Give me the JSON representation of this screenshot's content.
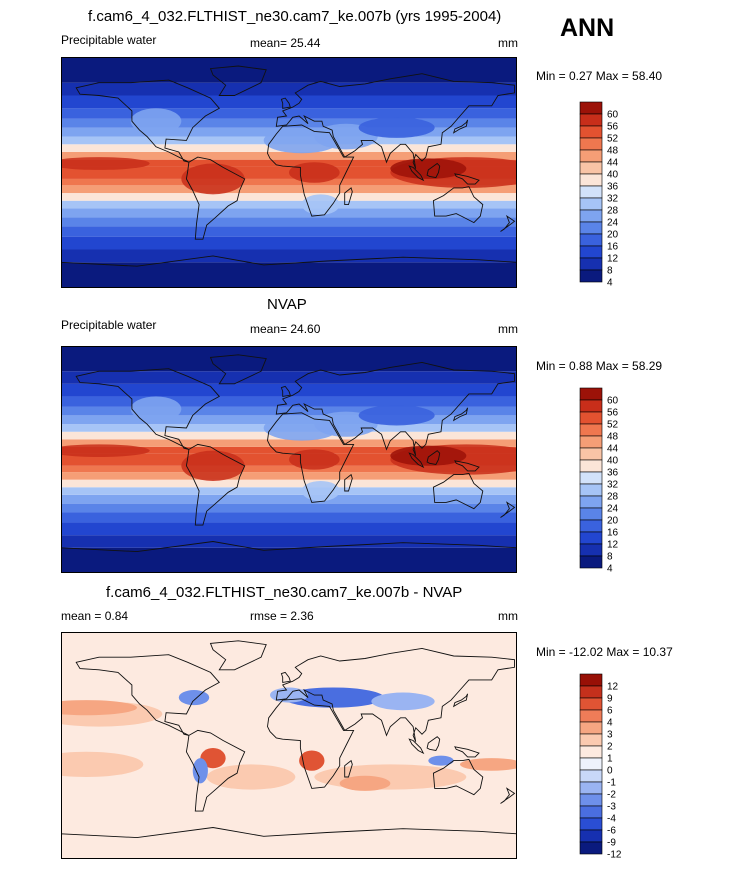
{
  "season": "ANN",
  "colors": {
    "full": [
      "#0a1a7e",
      "#1630b0",
      "#2246d0",
      "#3a62de",
      "#5a84e8",
      "#7ea4f0",
      "#a6c4f6",
      "#d2e2fa",
      "#fbe5d8",
      "#f9c4a6",
      "#f59e76",
      "#ef774f",
      "#e35230",
      "#c82e1a",
      "#9c1208"
    ],
    "diff": [
      "#0a1a7e",
      "#1630b0",
      "#2a4ed4",
      "#4a6ee0",
      "#6e90ea",
      "#9ab4f2",
      "#c8d8f8",
      "#eef2fc",
      "#fdeae0",
      "#fbcab0",
      "#f6a682",
      "#ef7c58",
      "#e05434",
      "#c4301c",
      "#981006"
    ]
  },
  "panels": [
    {
      "title": "f.cam6_4_032.FLTHIST_ne30.cam7_ke.007b (yrs 1995-2004)",
      "variable": "Precipitable water",
      "mean_label": "mean=",
      "mean": "25.44",
      "units": "mm",
      "minmax": "Min =   0.27 Max =  58.40",
      "colorbar_labels": [
        "4",
        "8",
        "12",
        "16",
        "20",
        "24",
        "28",
        "32",
        "36",
        "40",
        "44",
        "48",
        "52",
        "56",
        "60"
      ]
    },
    {
      "title": "NVAP",
      "variable": "Precipitable water",
      "mean_label": "mean=",
      "mean": "24.60",
      "units": "mm",
      "minmax": "Min =   0.88 Max =  58.29",
      "colorbar_labels": [
        "4",
        "8",
        "12",
        "16",
        "20",
        "24",
        "28",
        "32",
        "36",
        "40",
        "44",
        "48",
        "52",
        "56",
        "60"
      ]
    },
    {
      "title": "f.cam6_4_032.FLTHIST_ne30.cam7_ke.007b - NVAP",
      "mean_label": "mean =",
      "mean": "0.84",
      "rmse_label": "rmse =",
      "rmse": "2.36",
      "units": "mm",
      "minmax": "Min = -12.02 Max =  10.37",
      "colorbar_labels": [
        "-12",
        "-9",
        "-6",
        "-4",
        "-3",
        "-2",
        "-1",
        "0",
        "1",
        "2",
        "3",
        "4",
        "6",
        "9",
        "12"
      ]
    }
  ],
  "chart_data": [
    {
      "type": "heatmap",
      "title": "f.cam6_4_032.FLTHIST_ne30.cam7_ke.007b (yrs 1995-2004)",
      "field": "Precipitable water",
      "units": "mm",
      "mean": 25.44,
      "min": 0.27,
      "max": 58.4,
      "levels": [
        4,
        8,
        12,
        16,
        20,
        24,
        28,
        32,
        36,
        40,
        44,
        48,
        52,
        56,
        60
      ]
    },
    {
      "type": "heatmap",
      "title": "NVAP",
      "field": "Precipitable water",
      "units": "mm",
      "mean": 24.6,
      "min": 0.88,
      "max": 58.29,
      "levels": [
        4,
        8,
        12,
        16,
        20,
        24,
        28,
        32,
        36,
        40,
        44,
        48,
        52,
        56,
        60
      ]
    },
    {
      "type": "heatmap",
      "title": "f.cam6_4_032.FLTHIST_ne30.cam7_ke.007b - NVAP",
      "units": "mm",
      "mean": 0.84,
      "rmse": 2.36,
      "min": -12.02,
      "max": 10.37,
      "levels": [
        -12,
        -9,
        -6,
        -4,
        -3,
        -2,
        -1,
        0,
        1,
        2,
        3,
        4,
        6,
        9,
        12
      ]
    }
  ]
}
